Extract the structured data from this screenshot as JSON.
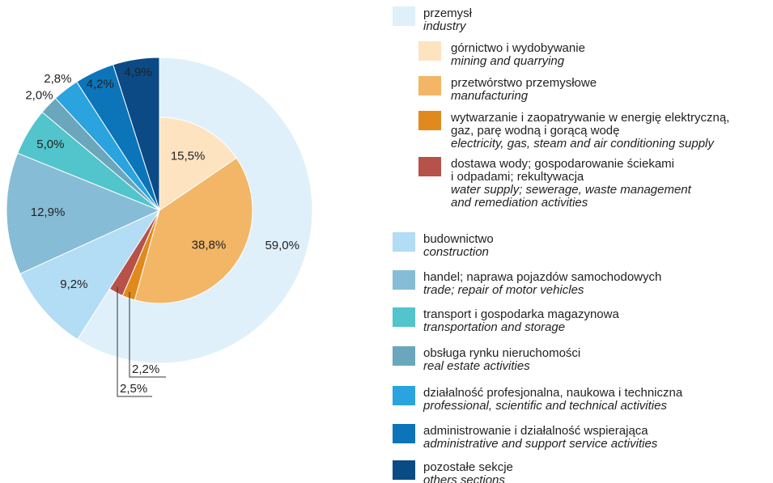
{
  "chart_data": {
    "type": "pie",
    "categories": [
      {
        "pl": [
          "przemysł"
        ],
        "en": [
          "industry"
        ]
      },
      {
        "pl": [
          "budownictwo"
        ],
        "en": [
          "construction"
        ]
      },
      {
        "pl": [
          "handel; naprawa pojazdów samochodowych"
        ],
        "en": [
          "trade; repair of motor vehicles"
        ]
      },
      {
        "pl": [
          "transport i gospodarka magazynowa"
        ],
        "en": [
          "transportation and storage"
        ]
      },
      {
        "pl": [
          "obsługa rynku nieruchomości"
        ],
        "en": [
          "real estate activities"
        ]
      },
      {
        "pl": [
          "działalność profesjonalna, naukowa i techniczna"
        ],
        "en": [
          "professional, scientific and technical activities"
        ]
      },
      {
        "pl": [
          "administrowanie i działalność wspierająca"
        ],
        "en": [
          "administrative and support service activities"
        ]
      },
      {
        "pl": [
          "pozostałe sekcje"
        ],
        "en": [
          "others sections"
        ]
      }
    ],
    "values": [
      59.0,
      9.2,
      12.9,
      5.0,
      2.0,
      2.8,
      4.2,
      4.9
    ],
    "value_labels": [
      "59,0%",
      "9,2%",
      "12,9%",
      "5,0%",
      "2,0%",
      "2,8%",
      "4,2%",
      "4,9%"
    ],
    "colors": [
      "#dff0fa",
      "#b3dcf5",
      "#86bcd6",
      "#52c4cc",
      "#6aa6bc",
      "#2aa3df",
      "#0c74b8",
      "#0b4a85"
    ],
    "subcategories": [
      {
        "pl": [
          "górnictwo i wydobywanie"
        ],
        "en": [
          "mining and quarrying"
        ]
      },
      {
        "pl": [
          "przetwórstwo przemysłowe"
        ],
        "en": [
          "manufacturing"
        ]
      },
      {
        "pl": [
          "wytwarzanie i zaopatrywanie w energię elektryczną,",
          "gaz, parę wodną i gorącą wodę"
        ],
        "en": [
          "electricity, gas, steam and air conditioning supply"
        ]
      },
      {
        "pl": [
          "dostawa wody; gospodarowanie ściekami",
          "i odpadami; rekultywacja"
        ],
        "en": [
          "water supply; sewerage, waste management",
          "and remediation activities"
        ]
      }
    ],
    "subvalues": [
      15.5,
      38.8,
      2.2,
      2.5
    ],
    "subvalue_labels": [
      "15,5%",
      "38,8%",
      "2,2%",
      "2,5%"
    ],
    "subcolors": [
      "#fde3c0",
      "#f2b666",
      "#e08a1e",
      "#b6524a"
    ]
  }
}
